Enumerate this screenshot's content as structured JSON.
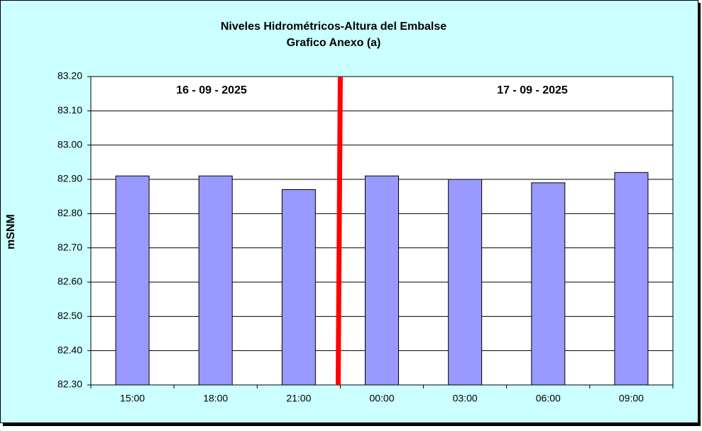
{
  "chart_data": {
    "type": "bar",
    "title": "Niveles Hidrométricos-Altura del Embalse",
    "subtitle": "Grafico Anexo (a)",
    "y_label": "mSNM",
    "annotations": [
      "16 - 09 - 2025",
      "17 - 09 - 2025"
    ],
    "categories": [
      "15:00",
      "18:00",
      "21:00",
      "00:00",
      "03:00",
      "06:00",
      "09:00"
    ],
    "values": [
      82.91,
      82.91,
      82.87,
      82.91,
      82.9,
      82.89,
      82.92
    ],
    "color": "#9999ff",
    "ylim": [
      82.3,
      83.2
    ],
    "yticks": [
      {
        "value": 82.3,
        "label": "82.30"
      },
      {
        "value": 82.4,
        "label": "82.40"
      },
      {
        "value": 82.5,
        "label": "82.50"
      },
      {
        "value": 82.6,
        "label": "82.60"
      },
      {
        "value": 82.7,
        "label": "82.70"
      },
      {
        "value": 82.8,
        "label": "82.80"
      },
      {
        "value": 82.9,
        "label": "82.90"
      },
      {
        "value": 83.0,
        "label": "83.00"
      },
      {
        "value": 83.1,
        "label": "83.10"
      },
      {
        "value": 83.2,
        "label": "83.20"
      }
    ],
    "grid": true
  }
}
